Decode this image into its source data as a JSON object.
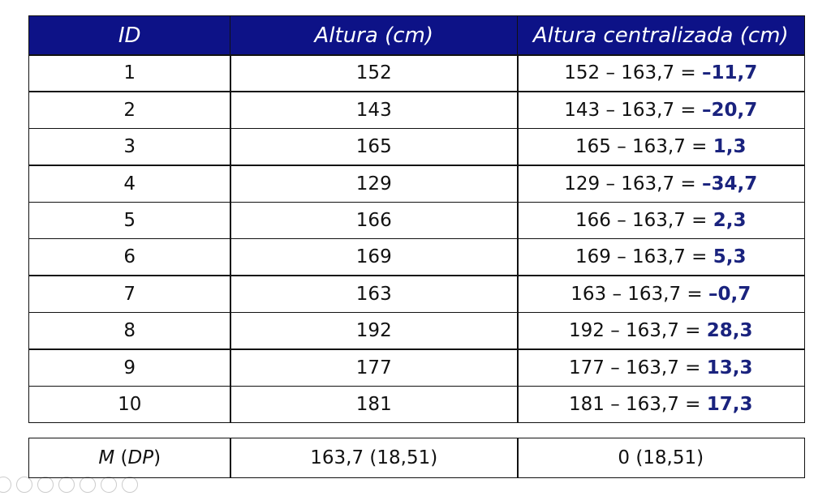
{
  "table": {
    "header": [
      "ID",
      "Altura (cm)",
      "Altura centralizada (cm)"
    ],
    "rows": [
      [
        "1",
        "152",
        "152 – 163,7 = ",
        "–11,7"
      ],
      [
        "2",
        "143",
        "143 – 163,7 = ",
        "–20,7"
      ],
      [
        "3",
        "165",
        "165 – 163,7 = ",
        "1,3"
      ],
      [
        "4",
        "129",
        "129 – 163,7 = ",
        "–34,7"
      ],
      [
        "5",
        "166",
        "166 – 163,7 = ",
        "2,3"
      ],
      [
        "6",
        "169",
        "169 – 163,7 = ",
        "5,3"
      ],
      [
        "7",
        "163",
        "163 – 163,7 = ",
        "–0,7"
      ],
      [
        "8",
        "192",
        "192 – 163,7 = ",
        "28,3"
      ],
      [
        "9",
        "177",
        "177 – 163,7 = ",
        "13,3"
      ],
      [
        "10",
        "181",
        "181 – 163,7 = ",
        "17,3"
      ]
    ],
    "footer": {
      "label_parts": [
        "M",
        " (",
        "DP",
        ")"
      ],
      "cells": [
        "163,7 (18,51)",
        "0 (18,51)"
      ]
    }
  }
}
